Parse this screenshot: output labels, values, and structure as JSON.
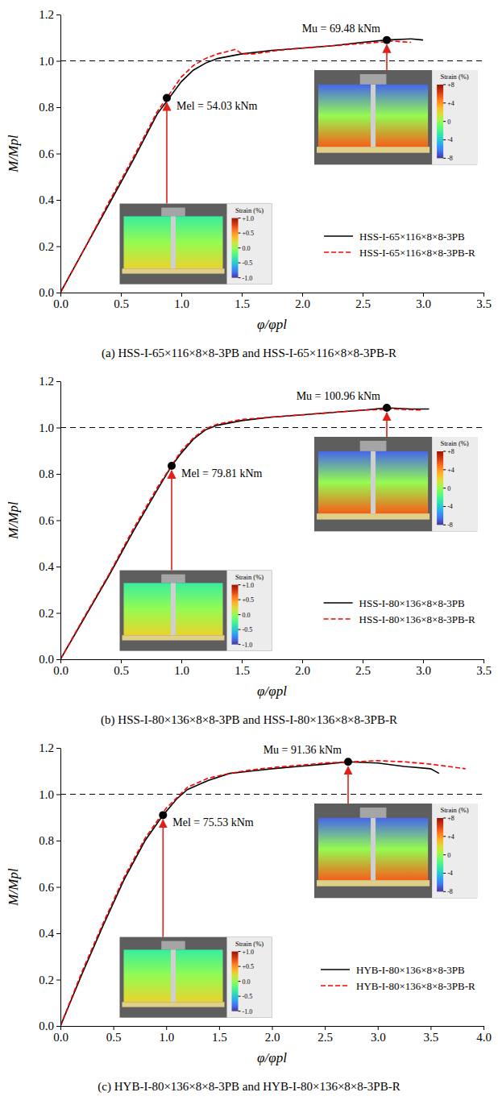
{
  "chart_data": [
    {
      "type": "line",
      "caption": "(a) HSS-I-65×116×8×8-3PB and HSS-I-65×116×8×8-3PB-R",
      "x_label": "φ/φpl",
      "y_label": "M/Mpl",
      "xlim": [
        0,
        3.5
      ],
      "xticks": [
        {
          "value": 0,
          "label": "0.0"
        },
        0.5,
        {
          "value": 1,
          "label": "1.0"
        },
        1.5,
        {
          "value": 2,
          "label": "2.0"
        },
        2.5,
        {
          "value": 3,
          "label": "3.0"
        },
        3.5
      ],
      "ylim": [
        0,
        1.2
      ],
      "yticks": [
        {
          "value": 0,
          "label": "0.0"
        },
        0.2,
        0.4,
        0.6,
        0.8,
        {
          "value": 1,
          "label": "1.0"
        },
        1.2
      ],
      "hline": 1,
      "legend": "lower right",
      "series": [
        {
          "name": "HSS-I-65×116×8×8-3PB",
          "color": "#000000",
          "line_style": "solid",
          "x": [
            0,
            0.2,
            0.4,
            0.6,
            0.8,
            0.9,
            1.0,
            1.1,
            1.2,
            1.3,
            1.5,
            1.75,
            2.0,
            2.25,
            2.5,
            2.7,
            2.9,
            3.0
          ],
          "values": [
            0,
            0.19,
            0.38,
            0.57,
            0.77,
            0.84,
            0.91,
            0.96,
            0.99,
            1.01,
            1.03,
            1.045,
            1.055,
            1.065,
            1.08,
            1.09,
            1.095,
            1.09
          ]
        },
        {
          "name": "HSS-I-65×116×8×8-3PB-R",
          "color": "#ff0000",
          "line_style": "dashed",
          "x": [
            0,
            0.2,
            0.4,
            0.6,
            0.8,
            1.0,
            1.1,
            1.2,
            1.3,
            1.45,
            1.5,
            1.6,
            1.8,
            2.0,
            2.25,
            2.5,
            2.75,
            2.9
          ],
          "values": [
            0,
            0.19,
            0.39,
            0.58,
            0.78,
            0.93,
            0.98,
            1.01,
            1.03,
            1.05,
            1.03,
            1.03,
            1.045,
            1.055,
            1.065,
            1.075,
            1.085,
            1.08
          ]
        }
      ],
      "annotations": [
        {
          "label": "Mel = 54.03 kNm",
          "x": 0.88,
          "y": 0.84,
          "colorbar_title": "Strain (%)",
          "colorbar_range": [
            -1,
            1
          ],
          "colorbar_ticks": [
            {
              "value": 1,
              "label": "+1.0"
            },
            {
              "value": 0.5,
              "label": "+0.5"
            },
            {
              "value": 0,
              "label": "0.0"
            },
            {
              "value": -0.5,
              "label": "-0.5"
            },
            {
              "value": -1,
              "label": "-1.0"
            }
          ]
        },
        {
          "label": "Mu = 69.48 kNm",
          "x": 2.7,
          "y": 1.09,
          "colorbar_title": "Strain (%)",
          "colorbar_range": [
            -8,
            8
          ],
          "colorbar_ticks": [
            {
              "value": 8,
              "label": "+8"
            },
            {
              "value": 4,
              "label": "+4"
            },
            0,
            -4,
            -8
          ]
        }
      ]
    },
    {
      "type": "line",
      "caption": "(b) HSS-I-80×136×8×8-3PB and HSS-I-80×136×8×8-3PB-R",
      "x_label": "φ/φpl",
      "y_label": "M/Mpl",
      "xlim": [
        0,
        3.5
      ],
      "xticks": [
        {
          "value": 0,
          "label": "0.0"
        },
        0.5,
        {
          "value": 1,
          "label": "1.0"
        },
        1.5,
        {
          "value": 2,
          "label": "2.0"
        },
        2.5,
        {
          "value": 3,
          "label": "3.0"
        },
        3.5
      ],
      "ylim": [
        0,
        1.2
      ],
      "yticks": [
        {
          "value": 0,
          "label": "0.0"
        },
        0.2,
        0.4,
        0.6,
        0.8,
        {
          "value": 1,
          "label": "1.0"
        },
        1.2
      ],
      "hline": 1,
      "legend": "lower right",
      "series": [
        {
          "name": "HSS-I-80×136×8×8-3PB",
          "color": "#000000",
          "line_style": "solid",
          "x": [
            0,
            0.2,
            0.4,
            0.6,
            0.8,
            0.92,
            1.0,
            1.1,
            1.2,
            1.3,
            1.5,
            1.75,
            2.0,
            2.25,
            2.5,
            2.7,
            2.9,
            3.05
          ],
          "values": [
            0,
            0.18,
            0.36,
            0.55,
            0.73,
            0.835,
            0.89,
            0.95,
            0.99,
            1.01,
            1.03,
            1.045,
            1.055,
            1.065,
            1.075,
            1.085,
            1.08,
            1.08
          ]
        },
        {
          "name": "HSS-I-80×136×8×8-3PB-R",
          "color": "#ff0000",
          "line_style": "dashed",
          "x": [
            0,
            0.2,
            0.4,
            0.6,
            0.8,
            1.0,
            1.1,
            1.2,
            1.3,
            1.5,
            1.75,
            2.0,
            2.25,
            2.5,
            2.75,
            3.0
          ],
          "values": [
            0,
            0.185,
            0.365,
            0.56,
            0.74,
            0.9,
            0.955,
            0.995,
            1.015,
            1.035,
            1.045,
            1.055,
            1.065,
            1.075,
            1.08,
            1.075
          ]
        }
      ],
      "annotations": [
        {
          "label": "Mel = 79.81 kNm",
          "x": 0.92,
          "y": 0.835,
          "colorbar_title": "Strain (%)",
          "colorbar_range": [
            -1,
            1
          ],
          "colorbar_ticks": [
            {
              "value": 1,
              "label": "+1.0"
            },
            {
              "value": 0.5,
              "label": "+0.5"
            },
            {
              "value": 0,
              "label": "0.0"
            },
            {
              "value": -0.5,
              "label": "-0.5"
            },
            {
              "value": -1,
              "label": "-1.0"
            }
          ]
        },
        {
          "label": "Mu = 100.96 kNm",
          "x": 2.7,
          "y": 1.085,
          "colorbar_title": "Strain (%)",
          "colorbar_range": [
            -8,
            8
          ],
          "colorbar_ticks": [
            {
              "value": 8,
              "label": "+8"
            },
            {
              "value": 4,
              "label": "+4"
            },
            0,
            -4,
            -8
          ]
        }
      ]
    },
    {
      "type": "line",
      "caption": "(c) HYB-I-80×136×8×8-3PB and HYB-I-80×136×8×8-3PB-R",
      "x_label": "φ/φpl",
      "y_label": "M/Mpl",
      "xlim": [
        0,
        4
      ],
      "xticks": [
        {
          "value": 0,
          "label": "0.0"
        },
        0.5,
        {
          "value": 1,
          "label": "1.0"
        },
        1.5,
        {
          "value": 2,
          "label": "2.0"
        },
        2.5,
        {
          "value": 3,
          "label": "3.0"
        },
        3.5,
        {
          "value": 4,
          "label": "4.0"
        }
      ],
      "ylim": [
        0,
        1.2
      ],
      "yticks": [
        {
          "value": 0,
          "label": "0.0"
        },
        0.2,
        0.4,
        0.6,
        0.8,
        {
          "value": 1,
          "label": "1.0"
        },
        1.2
      ],
      "hline": 1,
      "legend": "lower right",
      "series": [
        {
          "name": "HYB-I-80×136×8×8-3PB",
          "color": "#000000",
          "line_style": "solid",
          "x": [
            0,
            0.2,
            0.4,
            0.6,
            0.8,
            0.97,
            1.1,
            1.2,
            1.4,
            1.6,
            1.8,
            2.0,
            2.25,
            2.5,
            2.72,
            3.0,
            3.25,
            3.5,
            3.58
          ],
          "values": [
            0,
            0.22,
            0.43,
            0.63,
            0.8,
            0.91,
            0.98,
            1.02,
            1.06,
            1.09,
            1.1,
            1.11,
            1.12,
            1.13,
            1.14,
            1.135,
            1.12,
            1.11,
            1.09
          ]
        },
        {
          "name": "HYB-I-80×136×8×8-3PB-R",
          "color": "#ff0000",
          "line_style": "dashed",
          "x": [
            0,
            0.2,
            0.4,
            0.6,
            0.8,
            1.0,
            1.2,
            1.4,
            1.6,
            1.8,
            2.0,
            2.25,
            2.5,
            2.75,
            3.0,
            3.25,
            3.5,
            3.83
          ],
          "values": [
            0,
            0.23,
            0.44,
            0.64,
            0.81,
            0.94,
            1.03,
            1.07,
            1.09,
            1.105,
            1.115,
            1.125,
            1.135,
            1.14,
            1.145,
            1.14,
            1.13,
            1.11
          ]
        }
      ],
      "annotations": [
        {
          "label": "Mel = 75.53 kNm",
          "x": 0.97,
          "y": 0.91,
          "colorbar_title": "Strain (%)",
          "colorbar_range": [
            -1,
            1
          ],
          "colorbar_ticks": [
            {
              "value": 1,
              "label": "+1.0"
            },
            {
              "value": 0.5,
              "label": "+0.5"
            },
            {
              "value": 0,
              "label": "0.0"
            },
            {
              "value": -0.5,
              "label": "-0.5"
            },
            {
              "value": -1,
              "label": "-1.0"
            }
          ]
        },
        {
          "label": "Mu = 91.36 kNm",
          "x": 2.72,
          "y": 1.14,
          "colorbar_title": "Strain (%)",
          "colorbar_range": [
            -8,
            8
          ],
          "colorbar_ticks": [
            {
              "value": 8,
              "label": "+8"
            },
            {
              "value": 4,
              "label": "+4"
            },
            0,
            -4,
            -8
          ]
        }
      ]
    }
  ]
}
